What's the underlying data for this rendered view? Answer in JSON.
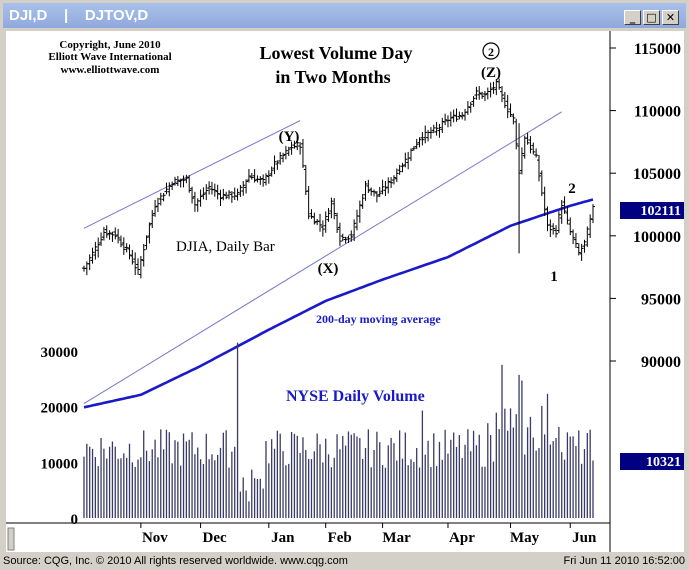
{
  "window": {
    "title_left": "DJI,D",
    "title_sep": "|",
    "title_right": "DJTOV,D",
    "minimize_glyph": "_",
    "maximize_glyph": "□",
    "close_glyph": "✕"
  },
  "status": {
    "left": "Source: CQG, Inc. © 2010 All rights reserved worldwide. www.cqg.com",
    "right": "Fri Jun 11 2010 16:52:00"
  },
  "annotations": {
    "copyright_1": "Copyright, June 2010",
    "copyright_2": "Elliott Wave International",
    "copyright_3": "www.elliottwave.com",
    "headline_1": "Lowest Volume Day",
    "headline_2": "in Two Months",
    "symbol_label": "DJIA, Daily Bar",
    "ma_label": "200-day moving average",
    "volume_label": "NYSE Daily Volume",
    "wave_y": "(Y)",
    "wave_x": "(X)",
    "wave_z": "(Z)",
    "wave_z_circled": "2",
    "wave_1": "1",
    "wave_2": "2"
  },
  "colors": {
    "bars": "#000000",
    "ma": "#1a1ac8",
    "channel": "#7777cc",
    "volume": "#3a3a66",
    "volume_label": "#1a1ac8",
    "price_box": "#000080"
  },
  "chart_data": [
    {
      "type": "ohlc",
      "series_name": "DJIA, Daily Bar",
      "y_ticks": [
        95000,
        100000,
        105000,
        110000,
        115000
      ],
      "y_tick_labels": [
        "95000",
        "100000",
        "105000",
        "110000",
        "115000"
      ],
      "ylim": [
        89000,
        116500
      ],
      "x_ticks": [
        "Nov",
        "Dec",
        "Jan",
        "Feb",
        "Mar",
        "Apr",
        "May",
        "Jun"
      ],
      "last_value_label": "102111",
      "anchors": [
        {
          "date": "Oct 05",
          "close": 97400
        },
        {
          "date": "Oct 08",
          "close": 98600
        },
        {
          "date": "Oct 14",
          "close": 100300
        },
        {
          "date": "Oct 20",
          "close": 100100
        },
        {
          "date": "Oct 27",
          "close": 98500
        },
        {
          "date": "Oct 30",
          "close": 97100
        },
        {
          "date": "Nov 04",
          "close": 100000
        },
        {
          "date": "Nov 09",
          "close": 102500
        },
        {
          "date": "Nov 17",
          "close": 104300
        },
        {
          "date": "Nov 24",
          "close": 104500
        },
        {
          "date": "Nov 27",
          "close": 102500
        },
        {
          "date": "Dec 04",
          "close": 103900
        },
        {
          "date": "Dec 10",
          "close": 103200
        },
        {
          "date": "Dec 18",
          "close": 103300
        },
        {
          "date": "Dec 24",
          "close": 104800
        },
        {
          "date": "Dec 31",
          "close": 104300
        },
        {
          "date": "Jan 06",
          "close": 105700
        },
        {
          "date": "Jan 14",
          "close": 107100
        },
        {
          "date": "Jan 19",
          "close": 107300
        },
        {
          "date": "Jan 22",
          "close": 101700
        },
        {
          "date": "Jan 29",
          "close": 100700
        },
        {
          "date": "Feb 03",
          "close": 102700
        },
        {
          "date": "Feb 08",
          "close": 99800
        },
        {
          "date": "Feb 12",
          "close": 100000
        },
        {
          "date": "Feb 19",
          "close": 104000
        },
        {
          "date": "Feb 25",
          "close": 103200
        },
        {
          "date": "Mar 04",
          "close": 104400
        },
        {
          "date": "Mar 10",
          "close": 105700
        },
        {
          "date": "Mar 18",
          "close": 107800
        },
        {
          "date": "Mar 26",
          "close": 108500
        },
        {
          "date": "Apr 01",
          "close": 109300
        },
        {
          "date": "Apr 08",
          "close": 109700
        },
        {
          "date": "Apr 15",
          "close": 111400
        },
        {
          "date": "Apr 20",
          "close": 111200
        },
        {
          "date": "Apr 26",
          "close": 112100
        },
        {
          "date": "Apr 30",
          "close": 110100
        },
        {
          "date": "May 04",
          "close": 109300
        },
        {
          "date": "May 06",
          "close": 105200
        },
        {
          "date": "May 10",
          "close": 107900
        },
        {
          "date": "May 14",
          "close": 106200
        },
        {
          "date": "May 20",
          "close": 100700
        },
        {
          "date": "May 25",
          "close": 100400
        },
        {
          "date": "May 27",
          "close": 102600
        },
        {
          "date": "Jun 01",
          "close": 100300
        },
        {
          "date": "Jun 04",
          "close": 98600
        },
        {
          "date": "Jun 08",
          "close": 99400
        },
        {
          "date": "Jun 11",
          "close": 102111
        }
      ],
      "moving_average_200": [
        {
          "date": "Oct 05",
          "value": 86300
        },
        {
          "date": "Nov 02",
          "value": 87300
        },
        {
          "date": "Dec 01",
          "value": 89600
        },
        {
          "date": "Jan 04",
          "value": 92500
        },
        {
          "date": "Feb 01",
          "value": 94800
        },
        {
          "date": "Mar 01",
          "value": 96500
        },
        {
          "date": "Apr 01",
          "value": 98300
        },
        {
          "date": "May 03",
          "value": 100800
        },
        {
          "date": "Jun 01",
          "value": 102400
        },
        {
          "date": "Jun 11",
          "value": 102900
        }
      ],
      "channel_lines": [
        {
          "from": {
            "date": "Oct 05",
            "value": 100600
          },
          "to": {
            "date": "Jan 19",
            "value": 109200
          }
        },
        {
          "from": {
            "date": "Oct 05",
            "value": 86600
          },
          "to": {
            "date": "May 27",
            "value": 109900
          }
        }
      ]
    },
    {
      "type": "bar",
      "series_name": "NYSE Daily Volume",
      "y_ticks": [
        0,
        10000,
        20000,
        30000
      ],
      "y_tick_labels": [
        "0",
        "10000",
        "20000",
        "30000"
      ],
      "ylim": [
        -1000,
        34000
      ],
      "last_value_label": "10321",
      "typical_range": [
        9000,
        16000
      ],
      "spikes": [
        {
          "date": "Dec 18",
          "value": 31500
        },
        {
          "date": "Dec 24",
          "value": 3000
        },
        {
          "date": "Mar 19",
          "value": 19300
        },
        {
          "date": "Apr 28",
          "value": 27500
        },
        {
          "date": "May 06",
          "value": 25700
        },
        {
          "date": "May 07",
          "value": 24700
        },
        {
          "date": "May 20",
          "value": 22300
        },
        {
          "date": "Jun 11",
          "value": 10321
        }
      ]
    }
  ]
}
